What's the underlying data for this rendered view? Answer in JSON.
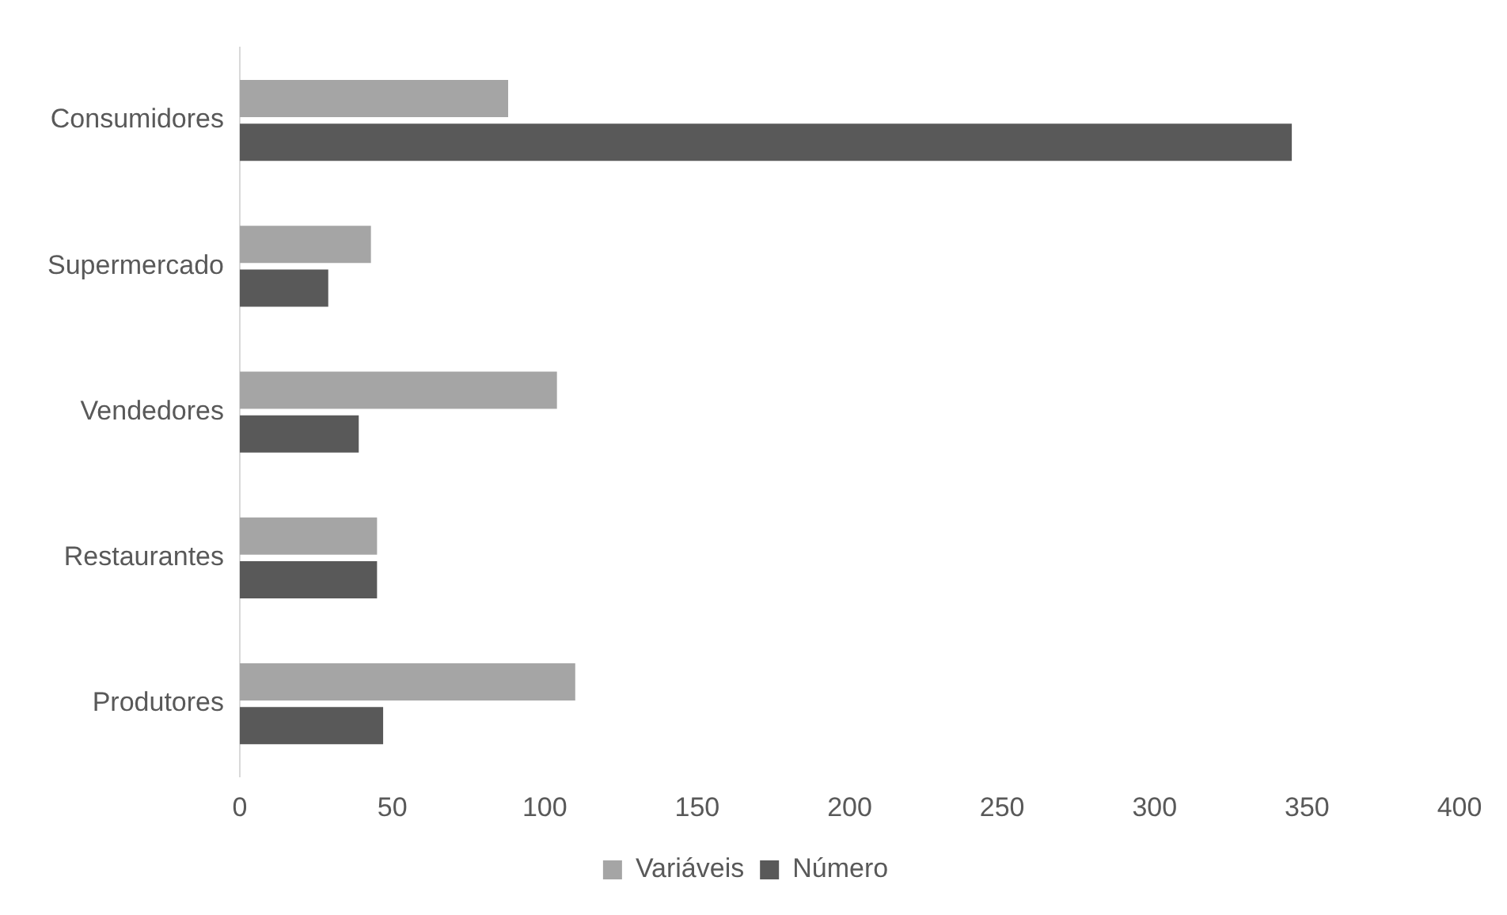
{
  "chart_data": {
    "type": "bar",
    "orientation": "horizontal",
    "categories": [
      "Consumidores",
      "Supermercado",
      "Vendedores",
      "Restaurantes",
      "Produtores"
    ],
    "series": [
      {
        "name": "Variáveis",
        "color": "#a5a5a5",
        "values": [
          88,
          43,
          104,
          45,
          110
        ]
      },
      {
        "name": "Número",
        "color": "#595959",
        "values": [
          345,
          29,
          39,
          45,
          47
        ]
      }
    ],
    "xlim": [
      0,
      400
    ],
    "xticks": [
      0,
      50,
      100,
      150,
      200,
      250,
      300,
      350,
      400
    ],
    "grid": false,
    "legend": "bottom"
  }
}
